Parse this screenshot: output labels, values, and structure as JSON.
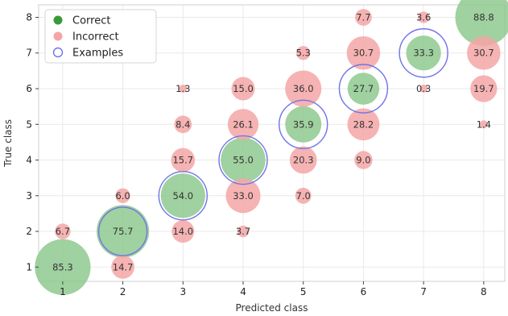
{
  "chart_data": {
    "type": "scatter",
    "xlabel": "Predicted class",
    "ylabel": "True class",
    "xlim": [
      0.6,
      8.35
    ],
    "ylim": [
      0.6,
      8.35
    ],
    "xticks": [
      "1",
      "2",
      "3",
      "4",
      "5",
      "6",
      "7",
      "8"
    ],
    "yticks": [
      "1",
      "2",
      "3",
      "4",
      "5",
      "6",
      "7",
      "8"
    ],
    "grid": true,
    "legend_position": "top-left",
    "colors": {
      "correct": "#8fc98f",
      "incorrect": "#f4a6a6",
      "examples": "#6f74e8"
    },
    "legend": [
      {
        "key": "correct",
        "label": "Correct"
      },
      {
        "key": "incorrect",
        "label": "Incorrect"
      },
      {
        "key": "examples",
        "label": "Examples"
      }
    ],
    "series": [
      {
        "name": "Correct",
        "points": [
          {
            "x": 1,
            "y": 1,
            "value": 85.3
          },
          {
            "x": 2,
            "y": 2,
            "value": 75.7
          },
          {
            "x": 3,
            "y": 3,
            "value": 54.0
          },
          {
            "x": 4,
            "y": 4,
            "value": 55.0
          },
          {
            "x": 5,
            "y": 5,
            "value": 35.9
          },
          {
            "x": 6,
            "y": 6,
            "value": 27.7
          },
          {
            "x": 7,
            "y": 7,
            "value": 33.3
          },
          {
            "x": 8,
            "y": 8,
            "value": 88.8
          }
        ]
      },
      {
        "name": "Incorrect",
        "points": [
          {
            "x": 2,
            "y": 1,
            "value": 14.7
          },
          {
            "x": 1,
            "y": 2,
            "value": 6.7
          },
          {
            "x": 3,
            "y": 2,
            "value": 14.0
          },
          {
            "x": 4,
            "y": 2,
            "value": 3.7
          },
          {
            "x": 2,
            "y": 3,
            "value": 6.0
          },
          {
            "x": 4,
            "y": 3,
            "value": 33.0
          },
          {
            "x": 5,
            "y": 3,
            "value": 7.0
          },
          {
            "x": 3,
            "y": 4,
            "value": 15.7
          },
          {
            "x": 5,
            "y": 4,
            "value": 20.3
          },
          {
            "x": 6,
            "y": 4,
            "value": 9.0
          },
          {
            "x": 3,
            "y": 5,
            "value": 8.4
          },
          {
            "x": 4,
            "y": 5,
            "value": 26.1
          },
          {
            "x": 6,
            "y": 5,
            "value": 28.2
          },
          {
            "x": 8,
            "y": 5,
            "value": 1.4
          },
          {
            "x": 3,
            "y": 6,
            "value": 1.3
          },
          {
            "x": 4,
            "y": 6,
            "value": 15.0
          },
          {
            "x": 5,
            "y": 6,
            "value": 36.0
          },
          {
            "x": 7,
            "y": 6,
            "value": 0.3
          },
          {
            "x": 8,
            "y": 6,
            "value": 19.7
          },
          {
            "x": 5,
            "y": 7,
            "value": 5.3
          },
          {
            "x": 6,
            "y": 7,
            "value": 30.7
          },
          {
            "x": 8,
            "y": 7,
            "value": 30.7
          },
          {
            "x": 6,
            "y": 8,
            "value": 7.7
          },
          {
            "x": 7,
            "y": 8,
            "value": 3.6
          }
        ]
      }
    ],
    "examples": [
      {
        "x": 2,
        "y": 2
      },
      {
        "x": 3,
        "y": 3
      },
      {
        "x": 4,
        "y": 4
      },
      {
        "x": 5,
        "y": 5
      },
      {
        "x": 6,
        "y": 6
      },
      {
        "x": 7,
        "y": 7
      }
    ]
  }
}
